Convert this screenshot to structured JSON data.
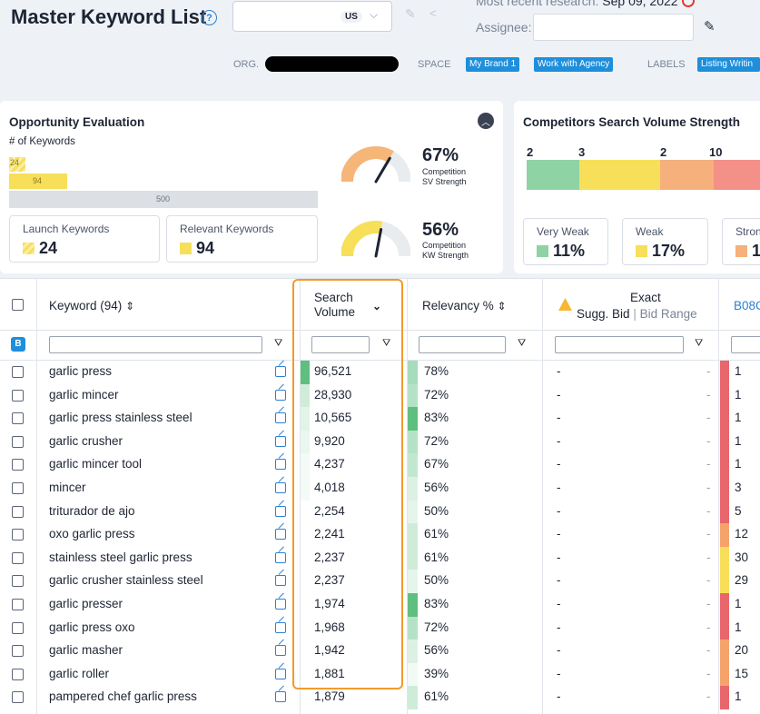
{
  "header": {
    "title": "Master Keyword List",
    "help_icon": "?",
    "marketplace": "US",
    "recent_label": "Most recent research:",
    "recent_date": "Sep 09, 2022",
    "assignee_label": "Assignee:",
    "org_label": "ORG.",
    "space_label": "SPACE",
    "space_badges": [
      "My Brand 1",
      "Work with Agency"
    ],
    "labels_label": "LABELS",
    "labels_badge": "Listing Writin"
  },
  "opportunity": {
    "title": "Opportunity Evaluation",
    "subtitle": "# of Keywords",
    "launch_count_small": "24",
    "relevant_count_small": "94",
    "total": "500",
    "launch_label": "Launch Keywords",
    "launch_value": "24",
    "relevant_label": "Relevant Keywords",
    "relevant_value": "94",
    "sv_pct": "67%",
    "sv_l1": "Competition",
    "sv_l2": "SV Strength",
    "sv_fraction": 0.67,
    "kw_pct": "56%",
    "kw_l1": "Competition",
    "kw_l2": "KW Strength",
    "kw_fraction": 0.56
  },
  "competitors": {
    "title": "Competitors Search Volume Strength",
    "counts": [
      "2",
      "3",
      "2",
      "10"
    ],
    "very_weak_label": "Very Weak",
    "very_weak_value": "11%",
    "weak_label": "Weak",
    "weak_value": "17%",
    "strong_label": "Stron",
    "strong_value": "1"
  },
  "table": {
    "col_keyword": "Keyword (94)",
    "col_sv_1": "Search",
    "col_sv_2": "Volume",
    "col_relevancy": "Relevancy %",
    "col_exact": "Exact",
    "col_sugg": "Sugg. Bid",
    "col_sep": "|",
    "col_range": "Bid Range",
    "col_asin": "B08C",
    "filter_badge": "B",
    "rows": [
      {
        "kw": "garlic press",
        "sv": "96,521",
        "rel": "78%",
        "bid": "-",
        "bid2": "-",
        "rank": "1",
        "svc": "#5fbf7f",
        "relc": "#a6dcbb",
        "rkc": "#e8666c"
      },
      {
        "kw": "garlic mincer",
        "sv": "28,930",
        "rel": "72%",
        "bid": "-",
        "bid2": "-",
        "rank": "1",
        "svc": "#cfecd9",
        "relc": "#b5e2c6",
        "rkc": "#e8666c"
      },
      {
        "kw": "garlic press stainless steel",
        "sv": "10,565",
        "rel": "83%",
        "bid": "-",
        "bid2": "-",
        "rank": "1",
        "svc": "#e2f4e8",
        "relc": "#5fbf7f",
        "rkc": "#e8666c"
      },
      {
        "kw": "garlic crusher",
        "sv": "9,920",
        "rel": "72%",
        "bid": "-",
        "bid2": "-",
        "rank": "1",
        "svc": "#eaf7ef",
        "relc": "#b5e2c6",
        "rkc": "#e8666c"
      },
      {
        "kw": "garlic mincer tool",
        "sv": "4,237",
        "rel": "67%",
        "bid": "-",
        "bid2": "-",
        "rank": "1",
        "svc": "#f4fbf6",
        "relc": "#c2e7cf",
        "rkc": "#e8666c"
      },
      {
        "kw": "mincer",
        "sv": "4,018",
        "rel": "56%",
        "bid": "-",
        "bid2": "-",
        "rank": "3",
        "svc": "#f4fbf6",
        "relc": "#dcf1e4",
        "rkc": "#e8666c"
      },
      {
        "kw": "triturador de ajo",
        "sv": "2,254",
        "rel": "50%",
        "bid": "-",
        "bid2": "-",
        "rank": "5",
        "svc": "#ffffff",
        "relc": "#e6f5ec",
        "rkc": "#e8666c"
      },
      {
        "kw": "oxo garlic press",
        "sv": "2,241",
        "rel": "61%",
        "bid": "-",
        "bid2": "-",
        "rank": "12",
        "svc": "#ffffff",
        "relc": "#cfecd9",
        "rkc": "#f5a36b"
      },
      {
        "kw": "stainless steel garlic press",
        "sv": "2,237",
        "rel": "61%",
        "bid": "-",
        "bid2": "-",
        "rank": "30",
        "svc": "#ffffff",
        "relc": "#cfecd9",
        "rkc": "#f7df5a"
      },
      {
        "kw": "garlic crusher stainless steel",
        "sv": "2,237",
        "rel": "50%",
        "bid": "-",
        "bid2": "-",
        "rank": "29",
        "svc": "#ffffff",
        "relc": "#e6f5ec",
        "rkc": "#f7df5a"
      },
      {
        "kw": "garlic presser",
        "sv": "1,974",
        "rel": "83%",
        "bid": "-",
        "bid2": "-",
        "rank": "1",
        "svc": "#ffffff",
        "relc": "#5fbf7f",
        "rkc": "#e8666c"
      },
      {
        "kw": "garlic press oxo",
        "sv": "1,968",
        "rel": "72%",
        "bid": "-",
        "bid2": "-",
        "rank": "1",
        "svc": "#ffffff",
        "relc": "#b5e2c6",
        "rkc": "#e8666c"
      },
      {
        "kw": "garlic masher",
        "sv": "1,942",
        "rel": "56%",
        "bid": "-",
        "bid2": "-",
        "rank": "20",
        "svc": "#ffffff",
        "relc": "#dcf1e4",
        "rkc": "#f5a36b"
      },
      {
        "kw": "garlic roller",
        "sv": "1,881",
        "rel": "39%",
        "bid": "-",
        "bid2": "-",
        "rank": "15",
        "svc": "#ffffff",
        "relc": "#f2faf5",
        "rkc": "#f5a36b"
      },
      {
        "kw": "pampered chef garlic press",
        "sv": "1,879",
        "rel": "61%",
        "bid": "-",
        "bid2": "-",
        "rank": "1",
        "svc": "#ffffff",
        "relc": "#cfecd9",
        "rkc": "#e8666c"
      }
    ]
  },
  "colors": {
    "accent": "#1e8fdb",
    "highlight": "#f39a2c",
    "launch": "#f7df5a",
    "very_weak": "#8fd3a5",
    "weak": "#f7df5a",
    "strong": "#f5a36b",
    "very_strong": "#f39088"
  }
}
